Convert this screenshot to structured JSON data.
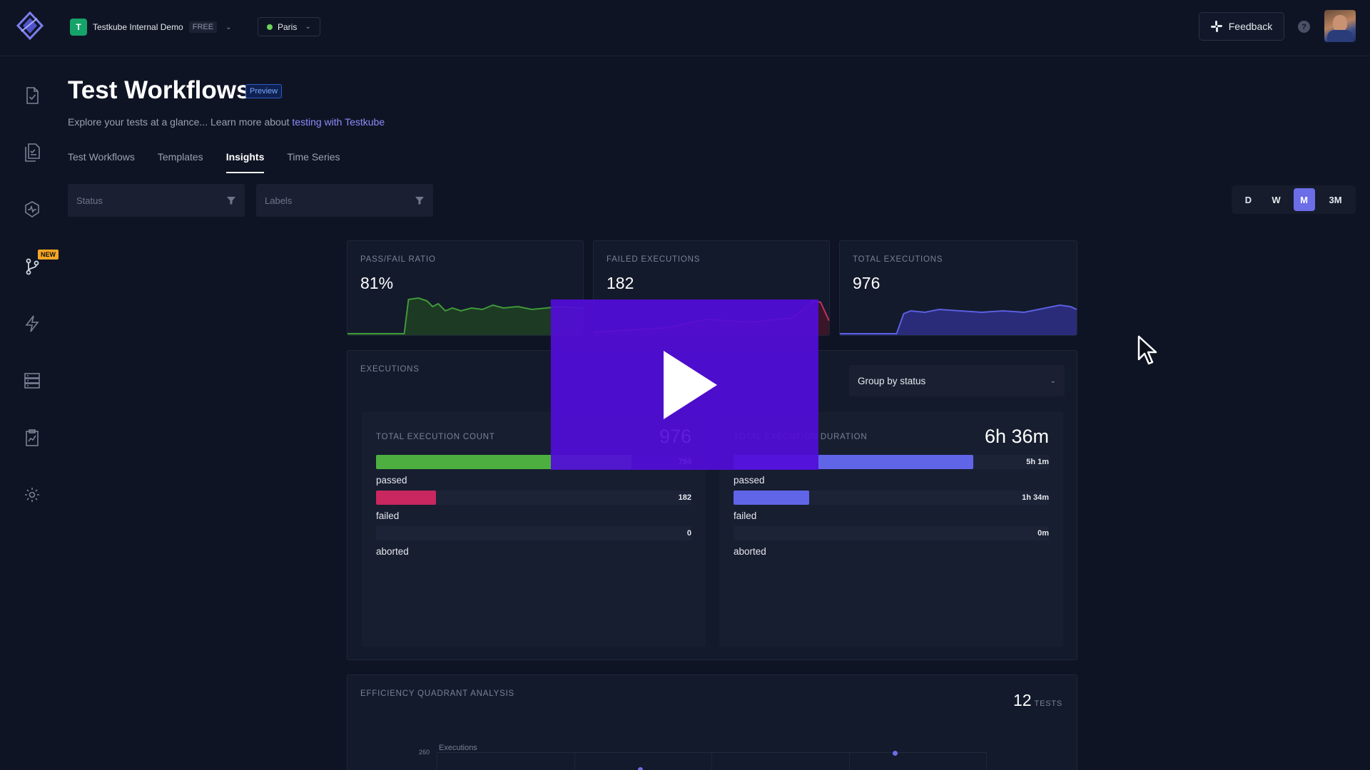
{
  "header": {
    "org_initial": "T",
    "org_name": "Testkube Internal Demo",
    "org_plan": "FREE",
    "environment": "Paris",
    "feedback_label": "Feedback",
    "help_label": "?"
  },
  "sidebar": {
    "new_badge": "NEW",
    "items": [
      "file-check-icon",
      "copy-files-icon",
      "shield-pulse-icon",
      "git-branch-icon",
      "lightning-icon",
      "database-icon",
      "clipboard-chart-icon",
      "gear-icon"
    ]
  },
  "page": {
    "title": "Test Workflows",
    "badge": "Preview",
    "subtitle_text": "Explore your tests at a glance... Learn more about ",
    "subtitle_link": "testing with Testkube",
    "tabs": [
      {
        "label": "Test Workflows",
        "active": false
      },
      {
        "label": "Templates",
        "active": false
      },
      {
        "label": "Insights",
        "active": true
      },
      {
        "label": "Time Series",
        "active": false
      }
    ]
  },
  "filters": {
    "status_placeholder": "Status",
    "labels_placeholder": "Labels"
  },
  "range": {
    "options": [
      "D",
      "W",
      "M",
      "3M"
    ],
    "selected": "M"
  },
  "kpis": [
    {
      "label": "PASS/FAIL RATIO",
      "value": "81%",
      "color": "#3f9a3a"
    },
    {
      "label": "FAILED EXECUTIONS",
      "value": "182",
      "color": "#c23161"
    },
    {
      "label": "TOTAL EXECUTIONS",
      "value": "976",
      "color": "#5b5fe0"
    }
  ],
  "executions": {
    "label": "EXECUTIONS",
    "group_by": "Group by status",
    "count_panel": {
      "label": "TOTAL EXECUTION COUNT",
      "total": "976",
      "rows": [
        {
          "name": "passed",
          "value": "794",
          "fraction": 0.81,
          "color": "#4caf3f"
        },
        {
          "name": "failed",
          "value": "182",
          "fraction": 0.19,
          "color": "#c8275f"
        },
        {
          "name": "aborted",
          "value": "0",
          "fraction": 0,
          "color": "#888888"
        }
      ]
    },
    "duration_panel": {
      "label": "TOTAL EXECUTION DURATION",
      "total": "6h 36m",
      "rows": [
        {
          "name": "passed",
          "value": "5h 1m",
          "fraction": 0.76,
          "color": "#6065e8"
        },
        {
          "name": "failed",
          "value": "1h 34m",
          "fraction": 0.24,
          "color": "#6065e8"
        },
        {
          "name": "aborted",
          "value": "0m",
          "fraction": 0,
          "color": "#6065e8"
        }
      ]
    }
  },
  "efficiency": {
    "label": "EFFICIENCY QUADRANT ANALYSIS",
    "count": "12",
    "count_unit": "TESTS",
    "y_axis_label": "Executions",
    "y_tick": "260"
  }
}
